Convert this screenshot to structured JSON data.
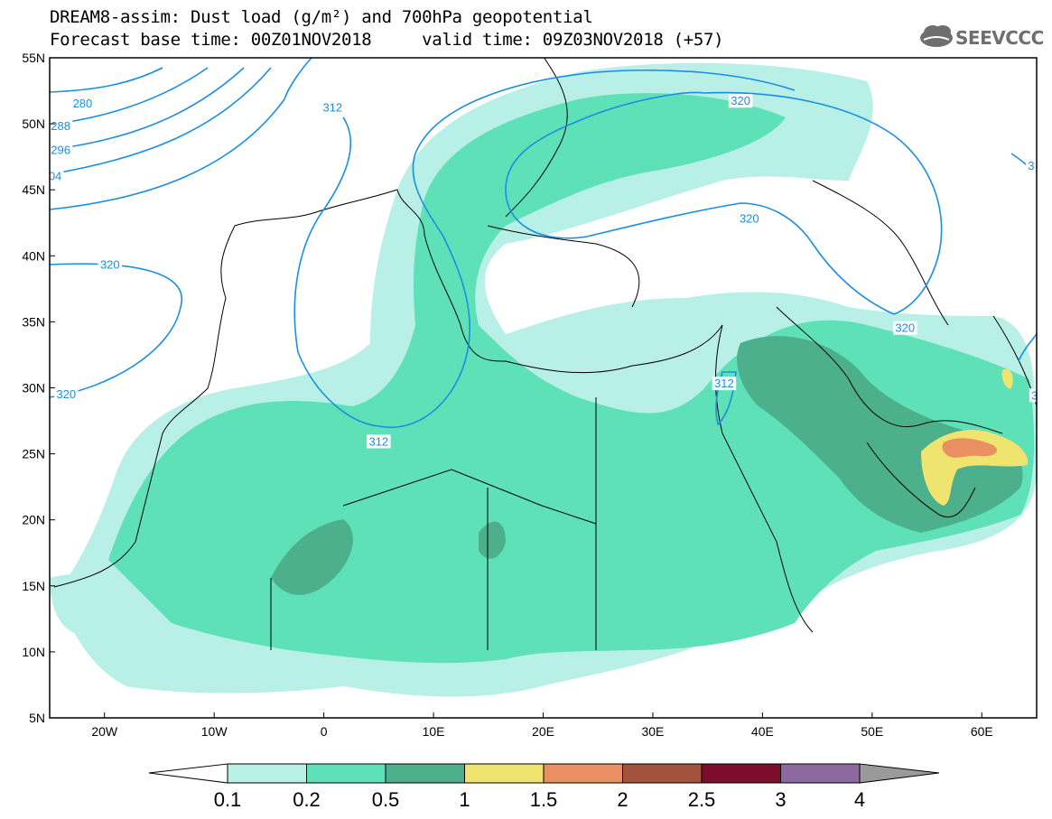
{
  "title": {
    "line1": "DREAM8-assim: Dust load (g/m²) and 700hPa geopotential",
    "line2": "Forecast base time: 00Z01NOV2018     valid time: 09Z03NOV2018 (+57)"
  },
  "logo": {
    "text": "SEEVCCC",
    "icon": "cloud-logo-icon"
  },
  "map": {
    "lon_range": [
      -25,
      65
    ],
    "lat_range": [
      5,
      55
    ],
    "lat_labels": [
      "55N",
      "50N",
      "45N",
      "40N",
      "35N",
      "30N",
      "25N",
      "20N",
      "15N",
      "10N",
      "5N"
    ],
    "lon_labels": [
      "20W",
      "10W",
      "0",
      "10E",
      "20E",
      "30E",
      "40E",
      "50E",
      "60E"
    ],
    "contours": [
      {
        "label": "280",
        "lon": -22,
        "lat": 51.5
      },
      {
        "label": "288",
        "lon": -24,
        "lat": 49.8
      },
      {
        "label": "296",
        "lon": -24,
        "lat": 48.0
      },
      {
        "label": "04",
        "lon": -24.5,
        "lat": 46.0
      },
      {
        "label": "312",
        "lon": 0.8,
        "lat": 51.2
      },
      {
        "label": "320",
        "lon": 38,
        "lat": 51.7
      },
      {
        "label": "3",
        "lon": 64.5,
        "lat": 46.8
      },
      {
        "label": "320",
        "lon": 38.8,
        "lat": 42.8
      },
      {
        "label": "320",
        "lon": -19.5,
        "lat": 39.3
      },
      {
        "label": "320",
        "lon": 53,
        "lat": 34.5
      },
      {
        "label": "312",
        "lon": 36.5,
        "lat": 30.3
      },
      {
        "label": "320",
        "lon": -23.5,
        "lat": 29.5
      },
      {
        "label": "312",
        "lon": 5,
        "lat": 25.9
      },
      {
        "label": "3",
        "lon": 64.8,
        "lat": 29.4
      }
    ]
  },
  "colorbar": {
    "labels": [
      "0.1",
      "0.2",
      "0.5",
      "1",
      "1.5",
      "2",
      "2.5",
      "3",
      "4"
    ],
    "colors": [
      "#b8efe6",
      "#5fe1b8",
      "#4db08d",
      "#f0e470",
      "#e98f62",
      "#a3523e",
      "#7c0e2b",
      "#8c6aa0",
      "#9a9a9a"
    ]
  }
}
